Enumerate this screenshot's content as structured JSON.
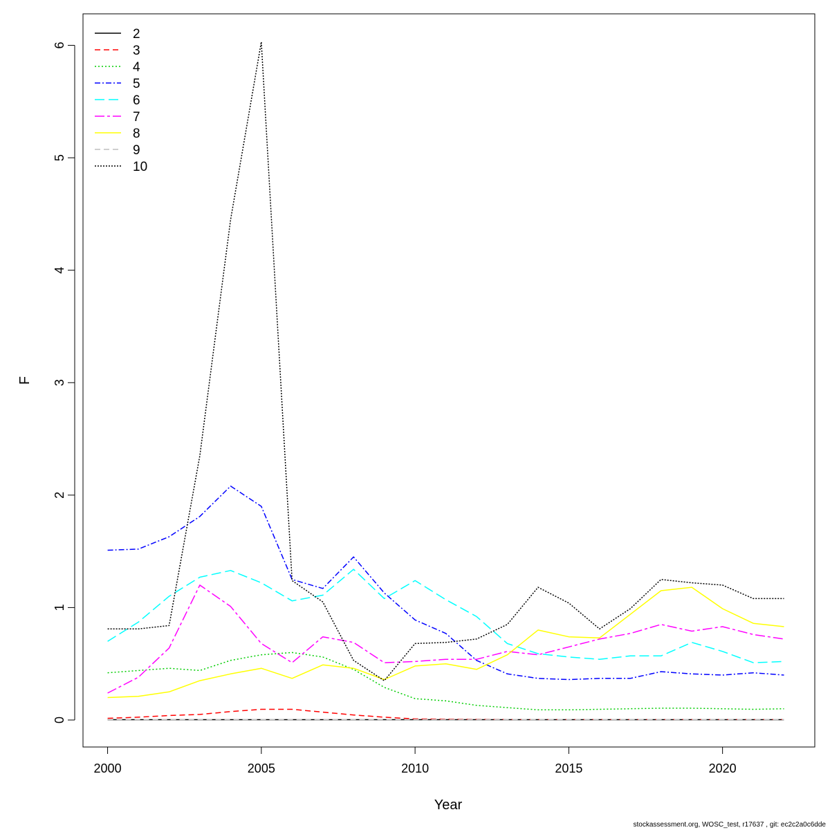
{
  "chart_data": {
    "type": "line",
    "title": "",
    "xlabel": "Year",
    "ylabel": "F",
    "xlim": [
      1999.2,
      2023.0
    ],
    "ylim": [
      -0.24,
      6.28
    ],
    "xticks": [
      2000,
      2005,
      2010,
      2015,
      2020
    ],
    "yticks": [
      0,
      1,
      2,
      3,
      4,
      5,
      6
    ],
    "grid": false,
    "legend_position": "top-left",
    "x": [
      2000,
      2001,
      2002,
      2003,
      2004,
      2005,
      2006,
      2007,
      2008,
      2009,
      2010,
      2011,
      2012,
      2013,
      2014,
      2015,
      2016,
      2017,
      2018,
      2019,
      2020,
      2021,
      2022
    ],
    "series": [
      {
        "name": "2",
        "color": "#000000",
        "dash": "",
        "values": [
          0.003,
          0.003,
          0.003,
          0.003,
          0.003,
          0.003,
          0.003,
          0.003,
          0.003,
          0.003,
          0.003,
          0.003,
          0.003,
          0.003,
          0.003,
          0.003,
          0.003,
          0.003,
          0.003,
          0.003,
          0.003,
          0.003,
          0.003
        ]
      },
      {
        "name": "3",
        "color": "#ff0000",
        "dash": "8,5",
        "values": [
          0.015,
          0.025,
          0.04,
          0.05,
          0.075,
          0.095,
          0.095,
          0.07,
          0.045,
          0.025,
          0.01,
          0.008,
          0.006,
          0.005,
          0.004,
          0.004,
          0.004,
          0.004,
          0.004,
          0.004,
          0.004,
          0.004,
          0.004
        ]
      },
      {
        "name": "4",
        "color": "#00cd00",
        "dash": "2,3",
        "values": [
          0.42,
          0.44,
          0.46,
          0.44,
          0.53,
          0.58,
          0.6,
          0.56,
          0.45,
          0.29,
          0.19,
          0.17,
          0.13,
          0.11,
          0.09,
          0.09,
          0.095,
          0.1,
          0.105,
          0.105,
          0.1,
          0.095,
          0.1
        ]
      },
      {
        "name": "5",
        "color": "#0000ff",
        "dash": "8,3,2,3",
        "values": [
          1.51,
          1.52,
          1.63,
          1.81,
          2.08,
          1.9,
          1.25,
          1.17,
          1.45,
          1.13,
          0.89,
          0.77,
          0.53,
          0.41,
          0.37,
          0.36,
          0.37,
          0.37,
          0.43,
          0.41,
          0.4,
          0.42,
          0.4
        ]
      },
      {
        "name": "6",
        "color": "#00ffff",
        "dash": "14,6",
        "values": [
          0.7,
          0.87,
          1.1,
          1.27,
          1.33,
          1.22,
          1.06,
          1.11,
          1.34,
          1.08,
          1.24,
          1.07,
          0.92,
          0.68,
          0.59,
          0.56,
          0.54,
          0.57,
          0.57,
          0.69,
          0.61,
          0.51,
          0.52
        ]
      },
      {
        "name": "7",
        "color": "#ff00ff",
        "dash": "14,4,4,4",
        "values": [
          0.24,
          0.38,
          0.64,
          1.2,
          1.01,
          0.68,
          0.51,
          0.74,
          0.69,
          0.51,
          0.52,
          0.54,
          0.54,
          0.61,
          0.58,
          0.65,
          0.72,
          0.77,
          0.85,
          0.79,
          0.83,
          0.76,
          0.72
        ]
      },
      {
        "name": "8",
        "color": "#ffff00",
        "dash": "",
        "values": [
          0.2,
          0.21,
          0.25,
          0.35,
          0.41,
          0.46,
          0.37,
          0.49,
          0.46,
          0.36,
          0.48,
          0.5,
          0.45,
          0.58,
          0.8,
          0.74,
          0.73,
          0.94,
          1.15,
          1.18,
          0.99,
          0.86,
          0.83
        ]
      },
      {
        "name": "9",
        "color": "#bebebe",
        "dash": "8,5",
        "values": [
          0.005,
          0.005,
          0.005,
          0.005,
          0.005,
          0.005,
          0.005,
          0.005,
          0.005,
          0.005,
          0.005,
          0.005,
          0.005,
          0.005,
          0.005,
          0.005,
          0.005,
          0.005,
          0.005,
          0.005,
          0.005,
          0.005,
          0.005
        ]
      },
      {
        "name": "10",
        "color": "#000000",
        "dash": "2,2",
        "values": [
          0.81,
          0.81,
          0.84,
          2.35,
          4.45,
          6.03,
          1.24,
          1.05,
          0.53,
          0.35,
          0.68,
          0.69,
          0.72,
          0.85,
          1.18,
          1.04,
          0.81,
          0.99,
          1.25,
          1.22,
          1.2,
          1.08,
          1.08
        ]
      }
    ]
  },
  "footer": "stockassessment.org, WOSC_test, r17637 , git: ec2c2a0c6dde"
}
